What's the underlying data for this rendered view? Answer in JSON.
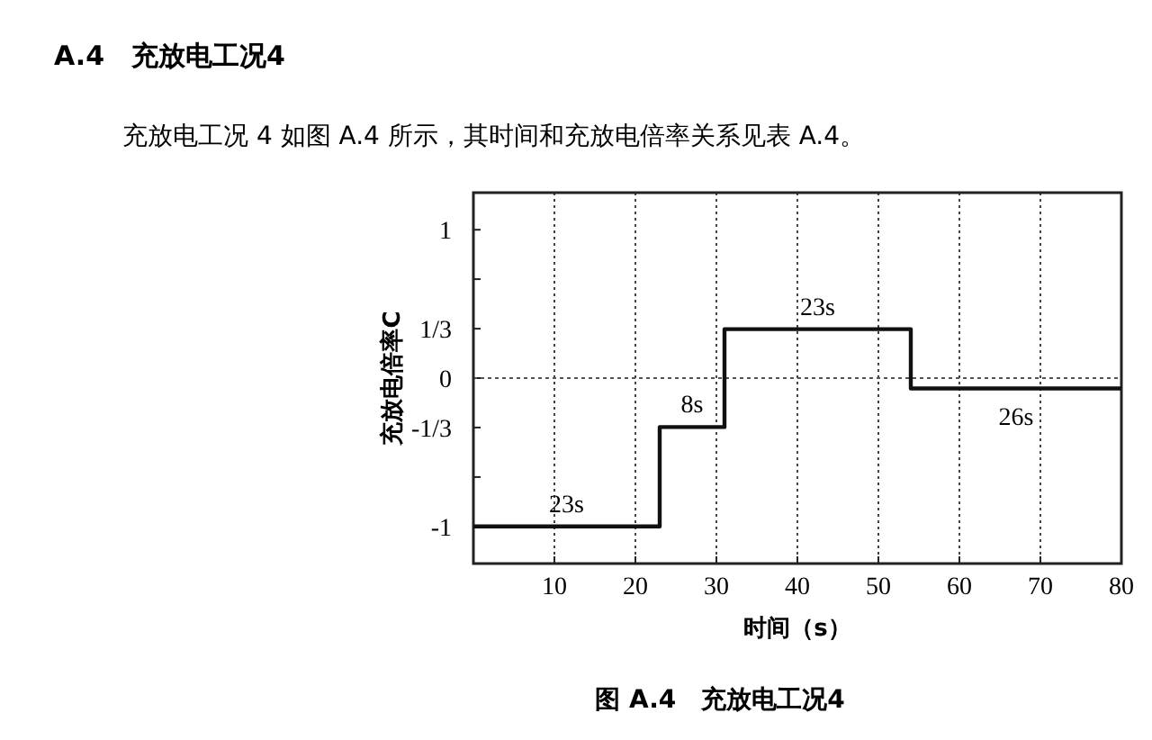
{
  "chart_data": {
    "type": "step",
    "title": "A.4　充放电工况4",
    "subtitle": "充放电工况 4 如图 A.4 所示，其时间和充放电倍率关系见表 A.4。",
    "xlabel": "时间（s）",
    "ylabel": "充放电倍率C",
    "x": [
      0,
      23,
      31,
      54,
      80
    ],
    "series": [
      {
        "color": "#111111",
        "values": [
          -1,
          -0.33,
          0.33,
          -0.07,
          -0.07
        ]
      }
    ],
    "xlim": [
      0,
      80
    ],
    "xticks": [
      10,
      20,
      30,
      40,
      50,
      60,
      70,
      80
    ],
    "ylim": [
      -1.25,
      1.25
    ],
    "yticks": [
      {
        "value": -1,
        "label": "-1"
      },
      {
        "value": -0.667,
        "label": null
      },
      {
        "value": -0.333,
        "label": "-1/3"
      },
      0,
      {
        "value": 0.333,
        "label": "1/3"
      },
      {
        "value": 0.667,
        "label": null
      },
      {
        "value": 1,
        "label": "1"
      }
    ],
    "grid": "x",
    "line_style": "solid",
    "ref_lines": [
      {
        "axis": "y",
        "value": 0,
        "line_style": "dotted",
        "color": "#555555"
      }
    ],
    "annotations": [
      "23s",
      "8s",
      "23s",
      "26s",
      "图 A.4　充放电工况4"
    ]
  }
}
